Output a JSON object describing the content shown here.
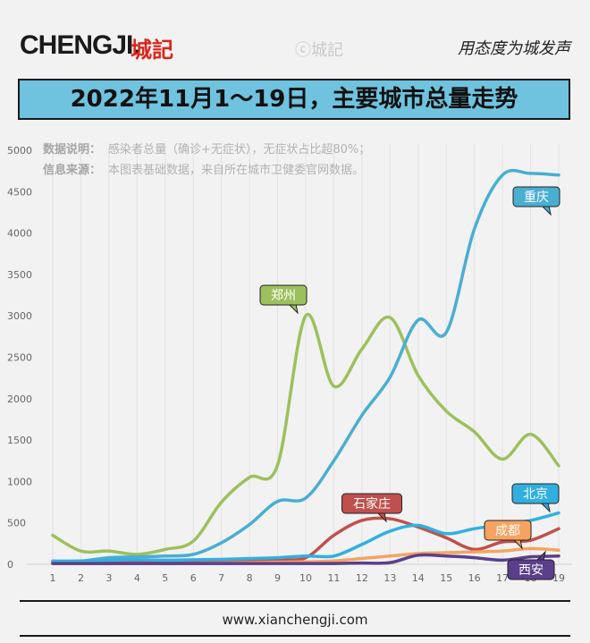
{
  "header": {
    "brand": "CHENGJI.",
    "brand_cn": "城記",
    "watermark": "ⓒ城記",
    "slogan": "用态度为城发声"
  },
  "title": "2022年11月1～19日，主要城市总量走势",
  "notes": {
    "line1_label": "数据说明：",
    "line1_text": "感染者总量（确诊+无症状），无症状占比超80%；",
    "line2_label": "信息来源：",
    "line2_text": "本图表基础数据，来自所在城市卫健委官网数据。"
  },
  "footer": "www.xianchengji.com",
  "colors": {
    "重庆": "#4aaed1",
    "郑州": "#9cc05e",
    "石家庄": "#c0504d",
    "北京": "#31b0e0",
    "成都": "#f4a460",
    "西安": "#5b3f8c"
  },
  "chart_data": {
    "type": "line",
    "title": "2022年11月1～19日，主要城市总量走势",
    "x": [
      1,
      2,
      3,
      4,
      5,
      6,
      7,
      8,
      9,
      10,
      11,
      12,
      13,
      14,
      15,
      16,
      17,
      18,
      19
    ],
    "ylim": [
      0,
      5000
    ],
    "yticks": [
      0,
      500,
      1000,
      1500,
      2000,
      2500,
      3000,
      3500,
      4000,
      4500,
      5000
    ],
    "grid": "vertical",
    "series": [
      {
        "name": "郑州",
        "values": [
          350,
          160,
          160,
          120,
          180,
          280,
          750,
          1050,
          1200,
          3000,
          2150,
          2600,
          2980,
          2280,
          1850,
          1600,
          1270,
          1570,
          1190
        ]
      },
      {
        "name": "重庆",
        "values": [
          30,
          40,
          80,
          90,
          100,
          120,
          260,
          480,
          760,
          800,
          1250,
          1800,
          2260,
          2950,
          2800,
          4050,
          4700,
          4720,
          4700
        ]
      },
      {
        "name": "石家庄",
        "values": [
          20,
          20,
          20,
          20,
          25,
          30,
          40,
          50,
          60,
          80,
          350,
          530,
          550,
          450,
          320,
          180,
          270,
          290,
          430
        ]
      },
      {
        "name": "北京",
        "values": [
          40,
          40,
          50,
          55,
          50,
          55,
          60,
          70,
          80,
          100,
          100,
          240,
          400,
          470,
          370,
          430,
          480,
          530,
          620
        ]
      },
      {
        "name": "成都",
        "values": [
          10,
          10,
          10,
          10,
          10,
          10,
          15,
          20,
          25,
          30,
          40,
          70,
          100,
          130,
          140,
          150,
          160,
          190,
          170
        ]
      },
      {
        "name": "西安",
        "values": [
          10,
          10,
          10,
          10,
          10,
          10,
          10,
          10,
          10,
          10,
          10,
          15,
          20,
          110,
          100,
          80,
          50,
          90,
          100
        ]
      }
    ],
    "labels": [
      "重庆",
      "郑州",
      "石家庄",
      "北京",
      "成都",
      "西安"
    ]
  }
}
